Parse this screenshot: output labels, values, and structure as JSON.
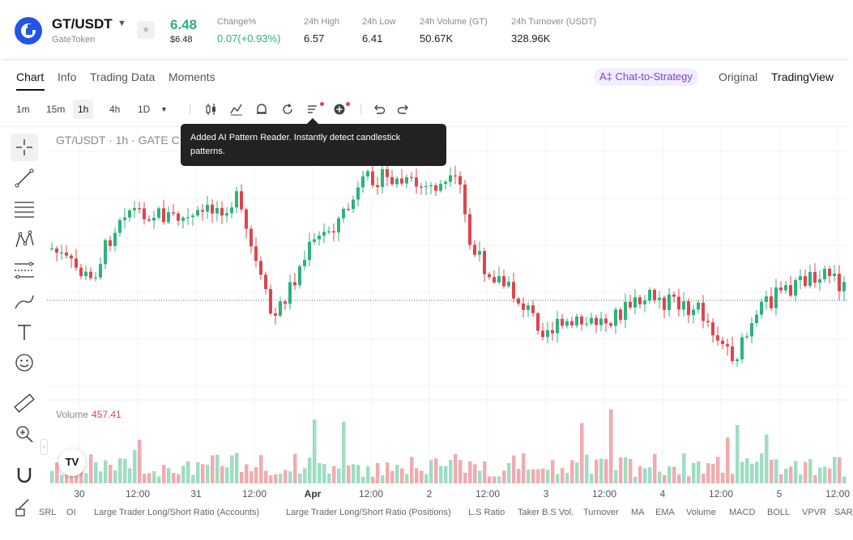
{
  "header": {
    "pair": "GT/USDT",
    "pair_name": "GateToken",
    "last_price": "6.48",
    "last_price_usd": "$6.48",
    "stats": [
      {
        "label": "Change%",
        "value": "0.07(+0.93%)"
      },
      {
        "label": "24h High",
        "value": "6.57"
      },
      {
        "label": "24h Low",
        "value": "6.41"
      },
      {
        "label": "24h Volume (GT)",
        "value": "50.67K"
      },
      {
        "label": "24h Turnover (USDT)",
        "value": "328.96K"
      }
    ],
    "colors": {
      "up": "#2bb37b",
      "down": "#e0444d",
      "brand": "#2354e6"
    }
  },
  "tabs": [
    {
      "label": "Chart",
      "active": true
    },
    {
      "label": "Info"
    },
    {
      "label": "Trading Data"
    },
    {
      "label": "Moments"
    }
  ],
  "right_tabs": {
    "chat_strategy": "A‡ Chat-to-Strategy",
    "original": "Original",
    "tradingview": "TradingView"
  },
  "toolbar": {
    "timeframes": [
      "1m",
      "15m",
      "1h",
      "4h",
      "1D"
    ],
    "selected_timeframe": "1h",
    "icons": [
      "candle-type-icon",
      "indicators-icon",
      "alert-icon",
      "replay-icon",
      "ai-pattern-reader-icon",
      "add-icon",
      "undo-icon",
      "redo-icon"
    ]
  },
  "tooltip": {
    "text": "Added AI Pattern Reader. Instantly detect candlestick patterns."
  },
  "left_toolbar": [
    "crosshair-icon",
    "trend-line-icon",
    "horizontal-lines-icon",
    "pattern-icon",
    "fib-icon",
    "brush-icon",
    "text-icon",
    "emoji-icon",
    "ruler-icon",
    "zoom-icon",
    "magnet-icon",
    "pencil-lock-icon"
  ],
  "chart": {
    "legend": "GT/USDT · 1h · GATE  C",
    "volume_label": "Volume",
    "volume_value": "457.41",
    "tv_badge": "TV"
  },
  "chart_data": {
    "type": "candlestick",
    "x_ticks": [
      "30",
      "12:00",
      "31",
      "12:00",
      "Apr",
      "12:00",
      "2",
      "12:00",
      "3",
      "12:00",
      "4",
      "12:00",
      "5",
      "12:00"
    ],
    "last_price": 6.48,
    "volume_last": 457.41
  },
  "indicators": [
    "SRL",
    "OI",
    "Large Trader Long/Short Ratio (Accounts)",
    "Large Trader Long/Short Ratio (Positions)",
    "L.S Ratio",
    "Taker B.S Vol.",
    "Turnover",
    "MA",
    "EMA",
    "Volume",
    "MACD",
    "BOLL",
    "VPVR",
    "SAR"
  ]
}
